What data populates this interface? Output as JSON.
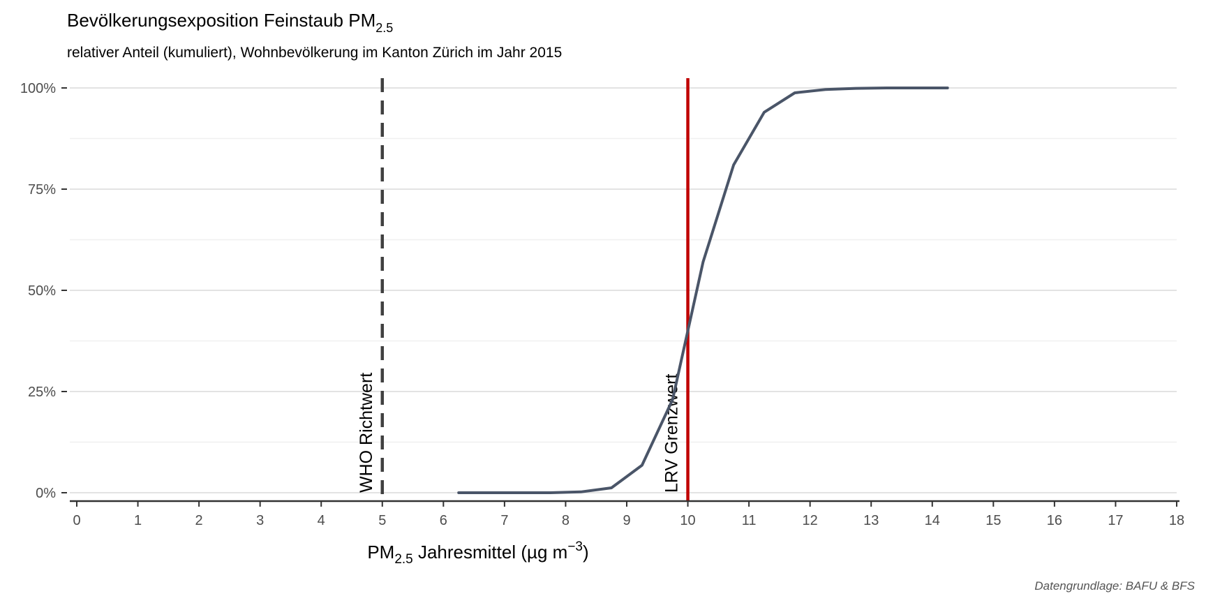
{
  "chart_data": {
    "type": "line",
    "title": "Bevölkerungsexposition Feinstaub PM",
    "title_sub": "2.5",
    "subtitle": "relativer Anteil (kumuliert), Wohnbevölkerung im Kanton Zürich im Jahr 2015",
    "xlabel_prefix": "PM",
    "xlabel_sub": "2.5",
    "xlabel_main": " Jahresmittel (µg m",
    "xlabel_sup": "−3",
    "xlabel_end": ")",
    "caption": "Datengrundlage: BAFU & BFS",
    "xlim": [
      0,
      18
    ],
    "ylim": [
      0,
      1
    ],
    "x_ticks": [
      0,
      1,
      2,
      3,
      4,
      5,
      6,
      7,
      8,
      9,
      10,
      11,
      12,
      13,
      14,
      15,
      16,
      17,
      18
    ],
    "y_ticks": [
      0,
      0.25,
      0.5,
      0.75,
      1.0
    ],
    "y_tick_labels": [
      "0%",
      "25%",
      "50%",
      "75%",
      "100%"
    ],
    "grid": true,
    "series": [
      {
        "color": "#4a5568",
        "x": [
          6.25,
          6.75,
          7.25,
          7.75,
          8.25,
          8.75,
          9.25,
          9.75,
          10.25,
          10.75,
          11.25,
          11.75,
          12.25,
          12.75,
          13.25,
          13.75,
          14.25
        ],
        "y": [
          0.0,
          0.0,
          0.0,
          0.0,
          0.002,
          0.012,
          0.068,
          0.23,
          0.57,
          0.81,
          0.94,
          0.988,
          0.996,
          0.999,
          1.0,
          1.0,
          1.0
        ]
      }
    ],
    "reference_lines": [
      {
        "x": 5,
        "label": "WHO Richtwert",
        "style": "dashed",
        "color": "#404040"
      },
      {
        "x": 10,
        "label": "LRV Grenzwert",
        "style": "solid",
        "color": "#c00000"
      }
    ]
  }
}
